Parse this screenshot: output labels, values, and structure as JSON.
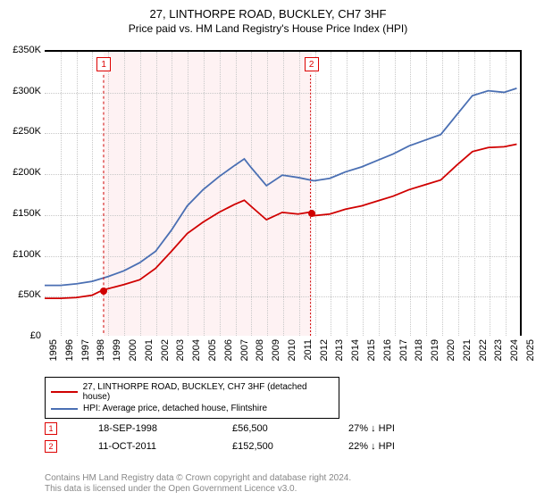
{
  "title": "27, LINTHORPE ROAD, BUCKLEY, CH7 3HF",
  "subtitle": "Price paid vs. HM Land Registry's House Price Index (HPI)",
  "chart": {
    "type": "line",
    "background_color": "#ffffff",
    "grid_color": "#c8c8c8",
    "shade_color": "#fde8ea",
    "x_years": [
      1995,
      1996,
      1997,
      1998,
      1999,
      2000,
      2001,
      2002,
      2003,
      2004,
      2005,
      2006,
      2007,
      2008,
      2009,
      2010,
      2011,
      2012,
      2013,
      2014,
      2015,
      2016,
      2017,
      2018,
      2019,
      2020,
      2021,
      2022,
      2023,
      2024,
      2025
    ],
    "y": {
      "min": 0,
      "max": 350000,
      "step": 50000,
      "labels": [
        "£0",
        "£50K",
        "£100K",
        "£150K",
        "£200K",
        "£250K",
        "£300K",
        "£350K"
      ]
    },
    "series": [
      {
        "name": "27, LINTHORPE ROAD, BUCKLEY, CH7 3HF (detached house)",
        "color": "#d00000",
        "width": 1.8,
        "points_by_year": {
          "1995": 46000,
          "1996": 46000,
          "1997": 47000,
          "1998": 50000,
          "1998.7": 56500,
          "1999": 58000,
          "2000": 63000,
          "2001": 69000,
          "2002": 83000,
          "2003": 104000,
          "2004": 126000,
          "2005": 140000,
          "2006": 152000,
          "2007": 162000,
          "2007.6": 167000,
          "2008": 160000,
          "2009": 143000,
          "2010": 152000,
          "2011": 150000,
          "2011.8": 152500,
          "2012": 148000,
          "2013": 150000,
          "2014": 156000,
          "2015": 160000,
          "2016": 166000,
          "2017": 172000,
          "2018": 180000,
          "2019": 186000,
          "2020": 192000,
          "2021": 210000,
          "2022": 227000,
          "2023": 232000,
          "2024": 233000,
          "2024.8": 236000
        }
      },
      {
        "name": "HPI: Average price, detached house, Flintshire",
        "color": "#4a6fb3",
        "width": 1.8,
        "points_by_year": {
          "1995": 62000,
          "1996": 62000,
          "1997": 64000,
          "1998": 67000,
          "1999": 73000,
          "2000": 80000,
          "2001": 90000,
          "2002": 104000,
          "2003": 130000,
          "2004": 160000,
          "2005": 180000,
          "2006": 196000,
          "2007": 210000,
          "2007.6": 218000,
          "2008": 208000,
          "2009": 185000,
          "2010": 198000,
          "2011": 195000,
          "2012": 191000,
          "2013": 194000,
          "2014": 202000,
          "2015": 208000,
          "2016": 216000,
          "2017": 224000,
          "2018": 234000,
          "2019": 241000,
          "2020": 248000,
          "2021": 272000,
          "2022": 296000,
          "2023": 302000,
          "2024": 300000,
          "2024.8": 305000
        }
      }
    ],
    "sale_markers": [
      {
        "n": "1",
        "year_frac": 1998.72,
        "y_value": 56500,
        "line_color": "#d00000",
        "dash": "3,3"
      },
      {
        "n": "2",
        "year_frac": 2011.78,
        "y_value": 152500,
        "line_color": "#d00000",
        "dash": "2,2"
      }
    ],
    "sale_dot_color": "#d00000"
  },
  "legend": {
    "rows": [
      {
        "color": "#d00000",
        "label": "27, LINTHORPE ROAD, BUCKLEY, CH7 3HF (detached house)"
      },
      {
        "color": "#4a6fb3",
        "label": "HPI: Average price, detached house, Flintshire"
      }
    ]
  },
  "sales_table": {
    "rows": [
      {
        "n": "1",
        "date": "18-SEP-1998",
        "price": "£56,500",
        "pct": "27% ↓ HPI"
      },
      {
        "n": "2",
        "date": "11-OCT-2011",
        "price": "£152,500",
        "pct": "22% ↓ HPI"
      }
    ]
  },
  "footer": {
    "line1": "Contains HM Land Registry data © Crown copyright and database right 2024.",
    "line2": "This data is licensed under the Open Government Licence v3.0."
  }
}
